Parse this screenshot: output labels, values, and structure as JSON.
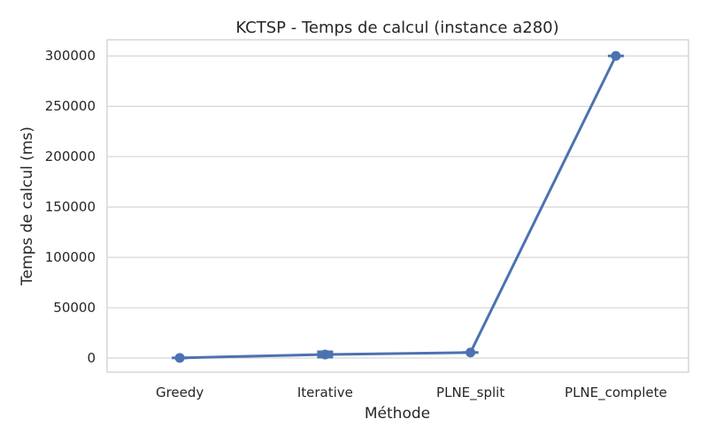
{
  "chart_data": {
    "type": "line",
    "title": "KCTSP - Temps de calcul (instance a280)",
    "xlabel": "Méthode",
    "ylabel": "Temps de calcul (ms)",
    "categories": [
      "Greedy",
      "Iterative",
      "PLNE_split",
      "PLNE_complete"
    ],
    "series": [
      {
        "values": [
          200,
          3500,
          5500,
          300000
        ],
        "color": "#4c72b0",
        "marker": "circle",
        "error_bars": true
      }
    ],
    "ylim": [
      -14000,
      316000
    ],
    "yticks": [
      0,
      50000,
      100000,
      150000,
      200000,
      250000,
      300000
    ],
    "ytick_labels": [
      "0",
      "50000",
      "100000",
      "150000",
      "200000",
      "250000",
      "300000"
    ],
    "grid": "horizontal",
    "style": "seaborn-whitegrid"
  }
}
